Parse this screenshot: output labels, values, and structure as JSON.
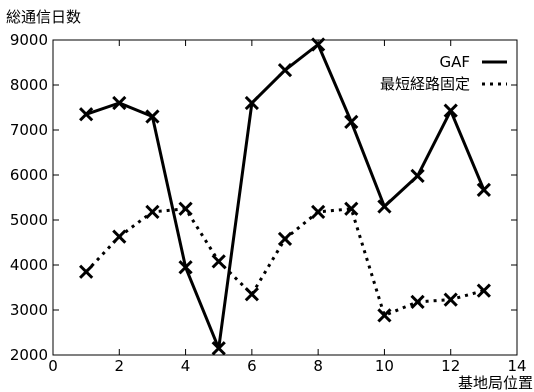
{
  "chart_data": {
    "type": "line",
    "title": "",
    "ylabel": "総通信日数",
    "xlabel": "基地局位置",
    "xlim": [
      0,
      14
    ],
    "ylim": [
      2000,
      9000
    ],
    "x_ticks": [
      0,
      2,
      4,
      6,
      8,
      10,
      12,
      14
    ],
    "y_ticks": [
      2000,
      3000,
      4000,
      5000,
      6000,
      7000,
      8000,
      9000
    ],
    "grid": false,
    "legend_position": "top-right",
    "x": [
      1,
      2,
      3,
      4,
      5,
      6,
      7,
      8,
      9,
      10,
      11,
      12,
      13
    ],
    "series": [
      {
        "name": "GAF",
        "line_style": "solid",
        "marker": "x",
        "values": [
          7350,
          7600,
          7300,
          3950,
          2150,
          7600,
          8330,
          8900,
          7180,
          5300,
          5980,
          7430,
          5670
        ]
      },
      {
        "name": "最短経路固定",
        "line_style": "dotted",
        "marker": "x",
        "values": [
          3850,
          4630,
          5180,
          5250,
          4080,
          3350,
          4580,
          5180,
          5250,
          2880,
          3180,
          3230,
          3430
        ]
      }
    ]
  }
}
